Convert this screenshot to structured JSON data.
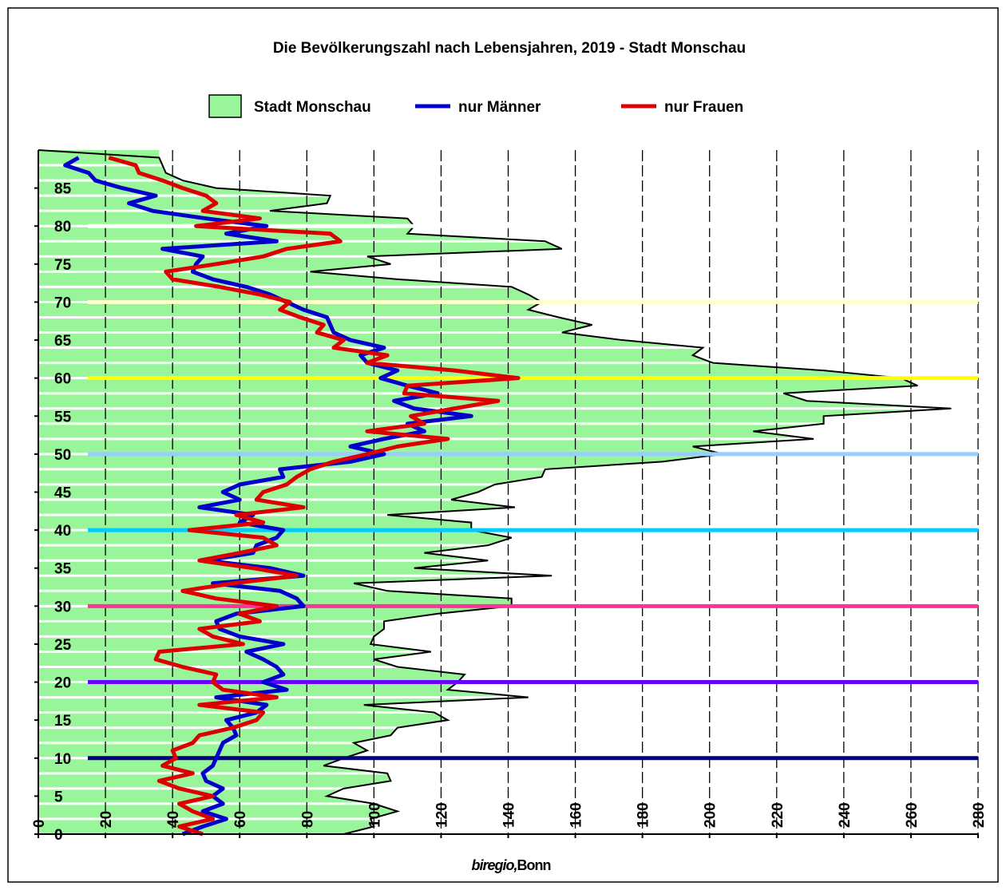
{
  "chart_data": {
    "type": "area-lines",
    "title": "Die Bevölkerungszahl nach Lebensjahren, 2019 - Stadt Monschau",
    "source": {
      "italic": "biregio,",
      "text": "Bonn"
    },
    "x": [
      0,
      1,
      2,
      3,
      4,
      5,
      6,
      7,
      8,
      9,
      10,
      11,
      12,
      13,
      14,
      15,
      16,
      17,
      18,
      19,
      20,
      21,
      22,
      23,
      24,
      25,
      26,
      27,
      28,
      29,
      30,
      31,
      32,
      33,
      34,
      35,
      36,
      37,
      38,
      39,
      40,
      41,
      42,
      43,
      44,
      45,
      46,
      47,
      48,
      49,
      50,
      51,
      52,
      53,
      54,
      55,
      56,
      57,
      58,
      59,
      60,
      61,
      62,
      63,
      64,
      65,
      66,
      67,
      68,
      69,
      70,
      71,
      72,
      73,
      74,
      75,
      76,
      77,
      78,
      79,
      80,
      81,
      82,
      83,
      84,
      85,
      86,
      87,
      88,
      89
    ],
    "series": [
      {
        "name": "Stadt Monschau",
        "kind": "area",
        "color": "#99f599",
        "outline": "#000000",
        "values": [
          91,
          100,
          99,
          107,
          100,
          86,
          91,
          105,
          104,
          85,
          91,
          98,
          94,
          105,
          107,
          122,
          118,
          97,
          146,
          122,
          125,
          127,
          107,
          100,
          117,
          99,
          100,
          103,
          103,
          119,
          141,
          141,
          104,
          94,
          153,
          112,
          134,
          115,
          134,
          141,
          129,
          129,
          104,
          142,
          123,
          131,
          136,
          150,
          151,
          186,
          204,
          195,
          231,
          213,
          234,
          234,
          272,
          229,
          222,
          262,
          257,
          234,
          201,
          195,
          198,
          174,
          156,
          165,
          155,
          146,
          150,
          146,
          141,
          107,
          81,
          105,
          98,
          156,
          151,
          110,
          112,
          110,
          69,
          86,
          87,
          53,
          43,
          38,
          37,
          36
        ]
      },
      {
        "name": "nur Männer",
        "kind": "line",
        "color": "#0000cc",
        "values": [
          43,
          49,
          56,
          49,
          55,
          52,
          55,
          50,
          49,
          52,
          53,
          54,
          55,
          59,
          58,
          56,
          65,
          68,
          53,
          74,
          67,
          73,
          71,
          67,
          62,
          73,
          60,
          54,
          53,
          59,
          79,
          77,
          72,
          52,
          79,
          69,
          50,
          64,
          65,
          71,
          73,
          60,
          64,
          48,
          60,
          55,
          60,
          73,
          72,
          93,
          103,
          93,
          103,
          115,
          110,
          129,
          112,
          106,
          119,
          110,
          102,
          107,
          98,
          96,
          103,
          93,
          88,
          87,
          86,
          79,
          74,
          69,
          62,
          52,
          46,
          47,
          49,
          37,
          71,
          56,
          68,
          50,
          34,
          27,
          35,
          25,
          17,
          15,
          8,
          12
        ]
      },
      {
        "name": "nur Frauen",
        "kind": "line",
        "color": "#dd0000",
        "values": [
          49,
          42,
          52,
          46,
          42,
          52,
          42,
          36,
          46,
          37,
          41,
          40,
          46,
          48,
          58,
          65,
          67,
          48,
          71,
          55,
          52,
          53,
          43,
          35,
          36,
          61,
          52,
          48,
          66,
          60,
          71,
          53,
          43,
          58,
          77,
          64,
          48,
          60,
          71,
          67,
          45,
          67,
          59,
          79,
          65,
          67,
          74,
          77,
          81,
          88,
          98,
          107,
          122,
          98,
          115,
          111,
          124,
          137,
          109,
          110,
          143,
          124,
          98,
          104,
          88,
          91,
          83,
          85,
          78,
          72,
          75,
          66,
          54,
          40,
          38,
          53,
          67,
          74,
          90,
          87,
          47,
          66,
          49,
          53,
          50,
          43,
          37,
          30,
          29,
          21
        ]
      }
    ],
    "xlim": [
      0,
      90
    ],
    "xticks": [
      0,
      5,
      10,
      15,
      20,
      25,
      30,
      35,
      40,
      45,
      50,
      55,
      60,
      65,
      70,
      75,
      80,
      85
    ],
    "ylim": [
      0,
      280
    ],
    "yticks": [
      0,
      20,
      40,
      60,
      80,
      100,
      120,
      140,
      160,
      180,
      200,
      220,
      240,
      260,
      280
    ],
    "grid": true,
    "reference_lines": [
      {
        "value": 10,
        "color": "#000080"
      },
      {
        "value": 20,
        "color": "#6600ff"
      },
      {
        "value": 30,
        "color": "#ff3399"
      },
      {
        "value": 40,
        "color": "#00ccff"
      },
      {
        "value": 50,
        "color": "#99ccff"
      },
      {
        "value": 60,
        "color": "#ffff00"
      },
      {
        "value": 70,
        "color": "#ffffcc"
      },
      {
        "value": 80,
        "color": "#ffffff"
      }
    ]
  }
}
